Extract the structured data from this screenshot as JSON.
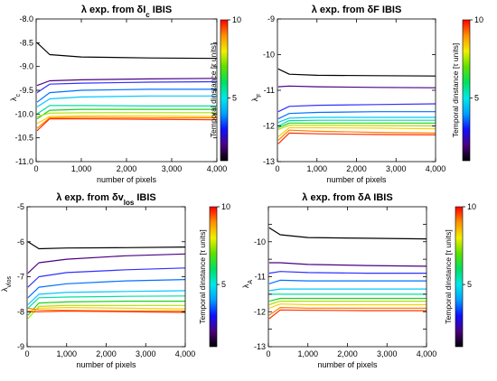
{
  "chart_data": [
    {
      "type": "line",
      "title": "λ exp. from δI_c IBIS",
      "title_main": "λ exp. from δI",
      "title_sub": "c",
      "title_tail": " IBIS",
      "xlabel": "number of pixels",
      "ylabel": "λ",
      "ylabel_sub": "c",
      "xlim": [
        0,
        4000
      ],
      "ylim": [
        -11.0,
        -8.0
      ],
      "xticks": [
        0,
        1000,
        2000,
        3000,
        4000
      ],
      "xtick_labels": [
        "0",
        "1,000",
        "2,000",
        "3,000",
        "4,000"
      ],
      "yticks": [
        -11.0,
        -10.5,
        -10.0,
        -9.5,
        -9.0,
        -8.5,
        -8.0
      ],
      "ytick_labels": [
        "-11.0",
        "-10.5",
        "-10.0",
        "-9.5",
        "-9.0",
        "-8.5",
        "-8.0"
      ],
      "colorbar": {
        "label": "Temporal dinstance [τ units]",
        "ticks": [
          5,
          10
        ],
        "range": [
          1,
          10
        ]
      },
      "series": [
        {
          "color": "#000000",
          "values": [
            -8.5,
            -8.75,
            -8.8,
            -8.82,
            -8.83
          ]
        },
        {
          "color": "#4b0082",
          "values": [
            -9.4,
            -9.3,
            -9.28,
            -9.26,
            -9.25
          ]
        },
        {
          "color": "#3030ff",
          "values": [
            -9.55,
            -9.37,
            -9.35,
            -9.33,
            -9.32
          ]
        },
        {
          "color": "#0070ff",
          "values": [
            -9.75,
            -9.55,
            -9.5,
            -9.48,
            -9.48
          ]
        },
        {
          "color": "#00c8ff",
          "values": [
            -9.85,
            -9.68,
            -9.64,
            -9.62,
            -9.62
          ]
        },
        {
          "color": "#00e0a0",
          "values": [
            -10.0,
            -9.82,
            -9.82,
            -9.83,
            -9.83
          ]
        },
        {
          "color": "#20d020",
          "values": [
            -10.1,
            -9.92,
            -9.9,
            -9.9,
            -9.9
          ]
        },
        {
          "color": "#b0e000",
          "values": [
            -10.05,
            -9.98,
            -9.97,
            -9.97,
            -9.97
          ]
        },
        {
          "color": "#ffd000",
          "values": [
            -10.2,
            -10.05,
            -10.04,
            -10.04,
            -10.05
          ]
        },
        {
          "color": "#ff8000",
          "values": [
            -10.3,
            -10.08,
            -10.07,
            -10.08,
            -10.08
          ]
        },
        {
          "color": "#ff3000",
          "values": [
            -10.35,
            -10.1,
            -10.1,
            -10.11,
            -10.12
          ]
        }
      ],
      "x": [
        20,
        300,
        1000,
        2500,
        4000
      ]
    },
    {
      "type": "line",
      "title": "λ exp. from δF IBIS",
      "title_main": "λ exp. from δF",
      "title_sub": "",
      "title_tail": " IBIS",
      "xlabel": "number of pixels",
      "ylabel": "λ",
      "ylabel_sub": "F",
      "xlim": [
        0,
        4000
      ],
      "ylim": [
        -13,
        -9
      ],
      "xticks": [
        0,
        1000,
        2000,
        3000,
        4000
      ],
      "xtick_labels": [
        "0",
        "1,000",
        "2,000",
        "3,000",
        "4,000"
      ],
      "yticks": [
        -13,
        -12,
        -11,
        -10,
        -9
      ],
      "ytick_labels": [
        "-13",
        "-12",
        "-11",
        "-10",
        "-9"
      ],
      "colorbar": {
        "label": "Temporal dinstance [τ units]",
        "ticks": [
          5,
          10
        ],
        "range": [
          1,
          10
        ]
      },
      "series": [
        {
          "color": "#000000",
          "values": [
            -10.4,
            -10.55,
            -10.58,
            -10.59,
            -10.6
          ]
        },
        {
          "color": "#4b0082",
          "values": [
            -10.9,
            -10.88,
            -10.9,
            -10.92,
            -10.93
          ]
        },
        {
          "color": "#3030ff",
          "values": [
            -11.6,
            -11.45,
            -11.42,
            -11.4,
            -11.38
          ]
        },
        {
          "color": "#0070ff",
          "values": [
            -11.8,
            -11.65,
            -11.62,
            -11.6,
            -11.6
          ]
        },
        {
          "color": "#00c8ff",
          "values": [
            -11.9,
            -11.78,
            -11.76,
            -11.76,
            -11.76
          ]
        },
        {
          "color": "#00e0a0",
          "values": [
            -12.0,
            -11.85,
            -11.84,
            -11.84,
            -11.84
          ]
        },
        {
          "color": "#20d020",
          "values": [
            -12.05,
            -11.92,
            -11.92,
            -11.92,
            -11.92
          ]
        },
        {
          "color": "#b0e000",
          "values": [
            -12.1,
            -11.98,
            -11.98,
            -11.99,
            -12.0
          ]
        },
        {
          "color": "#ffd000",
          "values": [
            -12.3,
            -12.05,
            -12.05,
            -12.06,
            -12.08
          ]
        },
        {
          "color": "#ff8000",
          "values": [
            -12.4,
            -12.12,
            -12.15,
            -12.18,
            -12.2
          ]
        },
        {
          "color": "#ff3000",
          "values": [
            -12.5,
            -12.2,
            -12.22,
            -12.24,
            -12.25
          ]
        }
      ],
      "x": [
        20,
        300,
        1000,
        2500,
        4000
      ]
    },
    {
      "type": "line",
      "title": "λ exp. from δv_los IBIS",
      "title_main": "λ exp. from δv",
      "title_sub": "los",
      "title_tail": " IBIS",
      "xlabel": "number of pixels",
      "ylabel": "λ",
      "ylabel_sub": "vlos",
      "xlim": [
        0,
        4000
      ],
      "ylim": [
        -9,
        -5
      ],
      "xticks": [
        0,
        1000,
        2000,
        3000,
        4000
      ],
      "xtick_labels": [
        "0",
        "1,000",
        "2,000",
        "3,000",
        "4,000"
      ],
      "yticks": [
        -9,
        -8,
        -7,
        -6,
        -5
      ],
      "ytick_labels": [
        "-9",
        "-8",
        "-7",
        "-6",
        "-5"
      ],
      "colorbar": {
        "label": "Temporal dinstance [τ units]",
        "ticks": [
          5,
          10
        ],
        "range": [
          1,
          10
        ]
      },
      "series": [
        {
          "color": "#000000",
          "values": [
            -6.0,
            -6.2,
            -6.18,
            -6.17,
            -6.15
          ]
        },
        {
          "color": "#4b0082",
          "values": [
            -6.9,
            -6.6,
            -6.5,
            -6.4,
            -6.35
          ]
        },
        {
          "color": "#3030ff",
          "values": [
            -7.3,
            -7.0,
            -6.88,
            -6.8,
            -6.75
          ]
        },
        {
          "color": "#0070ff",
          "values": [
            -7.6,
            -7.3,
            -7.2,
            -7.12,
            -7.08
          ]
        },
        {
          "color": "#00c8ff",
          "values": [
            -7.8,
            -7.5,
            -7.45,
            -7.42,
            -7.4
          ]
        },
        {
          "color": "#00e0a0",
          "values": [
            -7.9,
            -7.6,
            -7.58,
            -7.56,
            -7.55
          ]
        },
        {
          "color": "#20d020",
          "values": [
            -8.1,
            -7.75,
            -7.72,
            -7.7,
            -7.7
          ]
        },
        {
          "color": "#b0e000",
          "values": [
            -8.2,
            -7.85,
            -7.82,
            -7.82,
            -7.82
          ]
        },
        {
          "color": "#ffd000",
          "values": [
            -8.0,
            -7.9,
            -7.88,
            -7.9,
            -7.92
          ]
        },
        {
          "color": "#ff8000",
          "values": [
            -7.9,
            -7.95,
            -7.96,
            -7.98,
            -7.98
          ]
        },
        {
          "color": "#ff3000",
          "values": [
            -8.0,
            -8.0,
            -7.98,
            -8.0,
            -8.02
          ]
        }
      ],
      "x": [
        20,
        300,
        1000,
        2500,
        4000
      ]
    },
    {
      "type": "line",
      "title": "λ exp. from δA IBIS",
      "title_main": "λ exp. from δA",
      "title_sub": "",
      "title_tail": " IBIS",
      "xlabel": "number of pixels",
      "ylabel": "λ",
      "ylabel_sub": "A",
      "xlim": [
        0,
        4000
      ],
      "ylim": [
        -13,
        -9
      ],
      "xticks": [
        0,
        1000,
        2000,
        3000,
        4000
      ],
      "xtick_labels": [
        "0",
        "1,000",
        "2,000",
        "3,000",
        "4,000"
      ],
      "yticks": [
        -13,
        -12.5,
        -12,
        -11.5,
        -11,
        -10.5,
        -10,
        -9.5
      ],
      "ytick_labels": [
        "-13",
        "",
        "-12",
        "",
        "-11",
        "",
        "-10",
        ""
      ],
      "colorbar": {
        "label": "Temporal dinstance [τ units]",
        "ticks": [
          5,
          10
        ],
        "range": [
          1,
          10
        ]
      },
      "series": [
        {
          "color": "#000000",
          "values": [
            -9.6,
            -9.8,
            -9.88,
            -9.9,
            -9.92
          ]
        },
        {
          "color": "#4b0082",
          "values": [
            -10.6,
            -10.6,
            -10.65,
            -10.68,
            -10.7
          ]
        },
        {
          "color": "#3030ff",
          "values": [
            -10.9,
            -10.85,
            -10.88,
            -10.9,
            -10.9
          ]
        },
        {
          "color": "#0070ff",
          "values": [
            -11.2,
            -11.1,
            -11.12,
            -11.12,
            -11.12
          ]
        },
        {
          "color": "#00c8ff",
          "values": [
            -11.4,
            -11.35,
            -11.35,
            -11.35,
            -11.35
          ]
        },
        {
          "color": "#00e0a0",
          "values": [
            -11.5,
            -11.5,
            -11.5,
            -11.5,
            -11.5
          ]
        },
        {
          "color": "#20d020",
          "values": [
            -11.7,
            -11.62,
            -11.62,
            -11.62,
            -11.62
          ]
        },
        {
          "color": "#b0e000",
          "values": [
            -11.8,
            -11.7,
            -11.7,
            -11.7,
            -11.7
          ]
        },
        {
          "color": "#ffd000",
          "values": [
            -11.9,
            -11.78,
            -11.8,
            -11.8,
            -11.8
          ]
        },
        {
          "color": "#ff8000",
          "values": [
            -12.1,
            -11.88,
            -11.9,
            -11.9,
            -11.9
          ]
        },
        {
          "color": "#ff3000",
          "values": [
            -12.2,
            -11.95,
            -11.96,
            -11.97,
            -11.97
          ]
        }
      ],
      "x": [
        20,
        300,
        1000,
        2500,
        4000
      ]
    }
  ],
  "colormap": [
    "#000000",
    "#4b0082",
    "#1010ff",
    "#00a0ff",
    "#00e8e8",
    "#00e060",
    "#60e000",
    "#f0f000",
    "#ff9000",
    "#ff0000"
  ]
}
